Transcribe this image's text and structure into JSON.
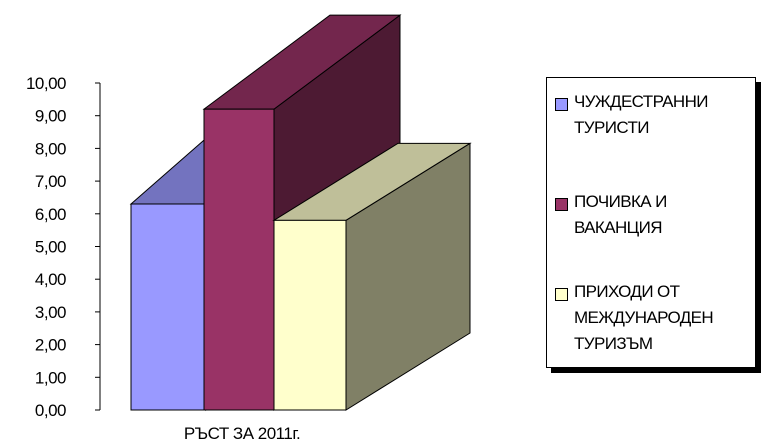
{
  "chart_data": {
    "type": "bar",
    "style": "3d-column",
    "categories": [
      "РЪСТ ЗА 2011г."
    ],
    "series": [
      {
        "name": "ЧУЖДЕСТРАННИ ТУРИСТИ",
        "values": [
          6.3
        ],
        "color": "#9999ff"
      },
      {
        "name": "ПОЧИВКА И ВАКАНЦИЯ",
        "values": [
          9.2
        ],
        "color": "#993366"
      },
      {
        "name": "ПРИХОДИ ОТ МЕЖДУНАРОДЕН ТУРИЗЪМ",
        "values": [
          5.8
        ],
        "color": "#ffffcc"
      }
    ],
    "yticks": [
      "0,00",
      "1,00",
      "2,00",
      "3,00",
      "4,00",
      "5,00",
      "6,00",
      "7,00",
      "8,00",
      "9,00",
      "10,00"
    ],
    "ylim": [
      0,
      10
    ],
    "grid": false,
    "legend": "right"
  }
}
